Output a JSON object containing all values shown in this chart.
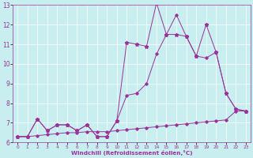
{
  "xlabel": "Windchill (Refroidissement éolien,°C)",
  "background_color": "#c8eef0",
  "line_color": "#993399",
  "xlim": [
    -0.5,
    23.5
  ],
  "ylim": [
    6,
    13
  ],
  "xticks": [
    0,
    1,
    2,
    3,
    4,
    5,
    6,
    7,
    8,
    9,
    10,
    11,
    12,
    13,
    14,
    15,
    16,
    17,
    18,
    19,
    20,
    21,
    22,
    23
  ],
  "yticks": [
    6,
    7,
    8,
    9,
    10,
    11,
    12,
    13
  ],
  "line1_x": [
    0,
    1,
    2,
    3,
    4,
    5,
    6,
    7,
    8,
    9,
    10,
    11,
    12,
    13,
    14,
    15,
    16,
    17,
    18,
    19,
    20,
    21,
    22,
    23
  ],
  "line1_y": [
    6.3,
    6.3,
    6.35,
    6.4,
    6.45,
    6.5,
    6.5,
    6.55,
    6.55,
    6.55,
    6.6,
    6.65,
    6.7,
    6.75,
    6.8,
    6.85,
    6.9,
    6.95,
    7.0,
    7.05,
    7.1,
    7.15,
    7.6,
    7.6
  ],
  "line2_x": [
    0,
    1,
    2,
    3,
    4,
    5,
    6,
    7,
    8,
    9,
    10,
    11,
    12,
    13,
    14,
    15,
    16,
    17,
    18,
    19,
    20,
    21,
    22,
    23
  ],
  "line2_y": [
    6.3,
    6.3,
    7.2,
    6.6,
    6.9,
    6.9,
    6.6,
    6.9,
    6.3,
    6.3,
    7.1,
    8.4,
    8.5,
    9.0,
    10.5,
    11.5,
    12.5,
    11.4,
    10.4,
    10.3,
    10.6,
    8.5,
    7.7,
    7.6
  ],
  "line3_x": [
    0,
    1,
    2,
    3,
    4,
    5,
    6,
    7,
    8,
    9,
    10,
    11,
    12,
    13,
    14,
    15,
    16,
    17,
    18,
    19,
    20,
    21,
    22,
    23
  ],
  "line3_y": [
    6.3,
    6.3,
    7.2,
    6.6,
    6.9,
    6.9,
    6.6,
    6.9,
    6.3,
    6.3,
    7.1,
    11.1,
    11.0,
    10.9,
    13.1,
    11.5,
    11.5,
    11.4,
    10.4,
    12.0,
    10.6,
    8.5,
    7.7,
    7.6
  ],
  "marker1": "D",
  "marker2": "D",
  "marker3": "*"
}
